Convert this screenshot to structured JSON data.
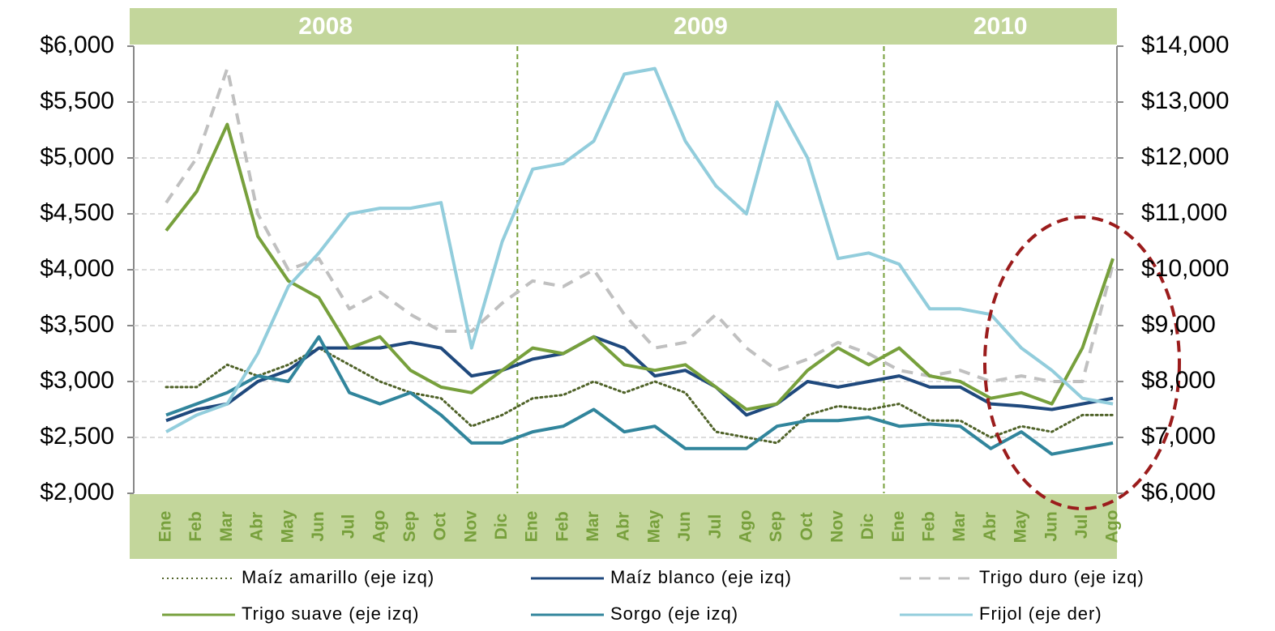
{
  "chart_data": {
    "type": "line",
    "years": [
      "2008",
      "2009",
      "2010"
    ],
    "categories": [
      "Ene",
      "Feb",
      "Mar",
      "Abr",
      "May",
      "Jun",
      "Jul",
      "Ago",
      "Sep",
      "Oct",
      "Nov",
      "Dic",
      "Ene",
      "Feb",
      "Mar",
      "Abr",
      "May",
      "Jun",
      "Jul",
      "Ago",
      "Sep",
      "Oct",
      "Nov",
      "Dic",
      "Ene",
      "Feb",
      "Mar",
      "Abr",
      "May",
      "Jun",
      "Jul",
      "Ago"
    ],
    "ylim": [
      2000,
      6000
    ],
    "yticks": [
      {
        "value": 2000,
        "label": "$2,000"
      },
      {
        "value": 2500,
        "label": "$2,500"
      },
      {
        "value": 3000,
        "label": "$3,000"
      },
      {
        "value": 3500,
        "label": "$3,500"
      },
      {
        "value": 4000,
        "label": "$4,000"
      },
      {
        "value": 4500,
        "label": "$4,500"
      },
      {
        "value": 5000,
        "label": "$5,000"
      },
      {
        "value": 5500,
        "label": "$5,500"
      },
      {
        "value": 6000,
        "label": "$6,000"
      }
    ],
    "y2lim": [
      6000,
      14000
    ],
    "y2ticks": [
      {
        "value": 6000,
        "label": "$6,000"
      },
      {
        "value": 7000,
        "label": "$7,000"
      },
      {
        "value": 8000,
        "label": "$8,000"
      },
      {
        "value": 9000,
        "label": "$9,000"
      },
      {
        "value": 10000,
        "label": "$10,000"
      },
      {
        "value": 11000,
        "label": "$11,000"
      },
      {
        "value": 12000,
        "label": "$12,000"
      },
      {
        "value": 13000,
        "label": "$13,000"
      },
      {
        "value": 14000,
        "label": "$14,000"
      }
    ],
    "grid": true,
    "series": [
      {
        "name": "Maíz amarillo (eje izq)",
        "color": "#4f6228",
        "style": "dotted",
        "values": [
          2950,
          2950,
          3150,
          3050,
          3150,
          3300,
          3150,
          3000,
          2900,
          2850,
          2600,
          2700,
          2850,
          2880,
          3000,
          2900,
          3000,
          2900,
          2550,
          2500,
          2450,
          2700,
          2780,
          2750,
          2800,
          2650,
          2650,
          2500,
          2600,
          2550,
          2700,
          2700
        ]
      },
      {
        "name": "Maíz blanco (eje izq)",
        "color": "#1f497d",
        "style": "solid",
        "values": [
          2650,
          2750,
          2800,
          3000,
          3100,
          3300,
          3300,
          3300,
          3350,
          3300,
          3050,
          3100,
          3200,
          3250,
          3400,
          3300,
          3050,
          3100,
          2950,
          2700,
          2800,
          3000,
          2950,
          3000,
          3050,
          2950,
          2950,
          2800,
          2780,
          2750,
          2800,
          2850
        ]
      },
      {
        "name": "Trigo duro (eje izq)",
        "color": "#c0c0c0",
        "style": "dashed",
        "values": [
          4600,
          5000,
          5800,
          4500,
          4000,
          4100,
          3650,
          3800,
          3600,
          3450,
          3450,
          3700,
          3900,
          3850,
          4000,
          3600,
          3300,
          3350,
          3600,
          3300,
          3100,
          3200,
          3350,
          3250,
          3100,
          3050,
          3100,
          3000,
          3050,
          3000,
          3000,
          4050
        ]
      },
      {
        "name": "Trigo suave (eje izq)",
        "color": "#77a03c",
        "style": "solid",
        "values": [
          4350,
          4700,
          5300,
          4300,
          3900,
          3750,
          3300,
          3400,
          3100,
          2950,
          2900,
          3100,
          3300,
          3250,
          3400,
          3150,
          3100,
          3150,
          2950,
          2750,
          2800,
          3100,
          3300,
          3150,
          3300,
          3050,
          3000,
          2850,
          2900,
          2800,
          3300,
          4100
        ]
      },
      {
        "name": "Sorgo (eje izq)",
        "color": "#31859c",
        "style": "solid",
        "values": [
          2700,
          2800,
          2900,
          3050,
          3000,
          3400,
          2900,
          2800,
          2900,
          2700,
          2450,
          2450,
          2550,
          2600,
          2750,
          2550,
          2600,
          2400,
          2400,
          2400,
          2600,
          2650,
          2650,
          2680,
          2600,
          2620,
          2600,
          2400,
          2550,
          2350,
          2400,
          2450
        ]
      },
      {
        "name": "Frijol (eje der)",
        "color": "#92cddc",
        "style": "solid",
        "axis": "y2",
        "values": [
          7100,
          7400,
          7600,
          8500,
          9700,
          10300,
          11000,
          11100,
          11100,
          11200,
          8600,
          10500,
          11800,
          11900,
          12300,
          13500,
          13600,
          12300,
          11500,
          11000,
          13000,
          12000,
          10200,
          10300,
          10100,
          9300,
          9300,
          9200,
          8600,
          8200,
          7700,
          7600
        ]
      }
    ]
  }
}
